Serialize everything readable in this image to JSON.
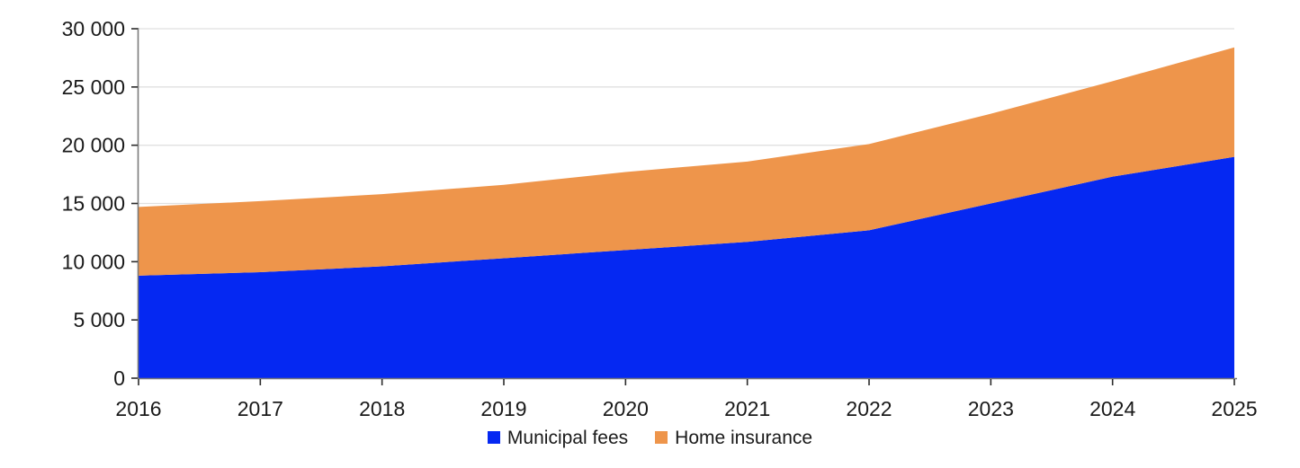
{
  "chart_data": {
    "type": "area",
    "stacked": true,
    "title": "",
    "xlabel": "",
    "ylabel": "",
    "categories": [
      "2016",
      "2017",
      "2018",
      "2019",
      "2020",
      "2021",
      "2022",
      "2023",
      "2024",
      "2025"
    ],
    "series": [
      {
        "name": "Municipal fees",
        "color": "#0528f2",
        "values": [
          8800,
          9100,
          9600,
          10300,
          11000,
          11700,
          12700,
          15000,
          17300,
          19000
        ]
      },
      {
        "name": "Home insurance",
        "color": "#ee954b",
        "values": [
          5900,
          6100,
          6200,
          6300,
          6700,
          6900,
          7400,
          7700,
          8200,
          9400
        ]
      }
    ],
    "totals": [
      14700,
      15200,
      15800,
      16600,
      17700,
      18600,
      20100,
      22700,
      25500,
      28400
    ],
    "ylim": [
      0,
      30000
    ],
    "y_ticks": [
      {
        "value": 0,
        "label": "0"
      },
      {
        "value": 5000,
        "label": "5 000"
      },
      {
        "value": 10000,
        "label": "10 000"
      },
      {
        "value": 15000,
        "label": "15 000"
      },
      {
        "value": 20000,
        "label": "20 000"
      },
      {
        "value": 25000,
        "label": "25 000"
      },
      {
        "value": 30000,
        "label": "30 000"
      }
    ],
    "grid": "horizontal",
    "legend_position": "bottom",
    "colors": {
      "gridline": "#e0e0e0",
      "axis_line": "#7a7a7a",
      "tick_mark": "#2b2b2b",
      "text": "#1a1a1a"
    }
  }
}
